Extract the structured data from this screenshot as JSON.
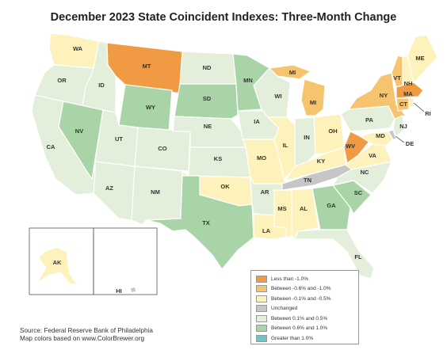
{
  "title": "December 2023 State Coincident Indexes: Three-Month Change",
  "colors": {
    "c1": "#f09a44",
    "c2": "#f6c46e",
    "c3": "#fdf2bc",
    "c4": "#c6c6c6",
    "c5": "#e3eedb",
    "c6": "#a9d4a7",
    "c7": "#79c0c2"
  },
  "legend": {
    "items": [
      {
        "key": "c1",
        "label": "Less than -1.0%"
      },
      {
        "key": "c2",
        "label": "Between -0.6% and -1.0%"
      },
      {
        "key": "c3",
        "label": "Between -0.1% and -0.5%"
      },
      {
        "key": "c4",
        "label": "Unchanged"
      },
      {
        "key": "c5",
        "label": "Between 0.1% and 0.5%"
      },
      {
        "key": "c6",
        "label": "Between 0.6% and 1.0%"
      },
      {
        "key": "c7",
        "label": "Greater than 1.0%"
      }
    ]
  },
  "source": {
    "line1": "Source: Federal Reserve Bank of Philadelphia",
    "line2": "Map colors based on www.ColorBrewer.org"
  },
  "states": {
    "WA": {
      "label": "WA",
      "cat": "c3"
    },
    "OR": {
      "label": "OR",
      "cat": "c5"
    },
    "CA": {
      "label": "CA",
      "cat": "c5"
    },
    "ID": {
      "label": "ID",
      "cat": "c5"
    },
    "NV": {
      "label": "NV",
      "cat": "c6"
    },
    "MT": {
      "label": "MT",
      "cat": "c1"
    },
    "WY": {
      "label": "WY",
      "cat": "c6"
    },
    "UT": {
      "label": "UT",
      "cat": "c5"
    },
    "AZ": {
      "label": "AZ",
      "cat": "c5"
    },
    "CO": {
      "label": "CO",
      "cat": "c5"
    },
    "NM": {
      "label": "NM",
      "cat": "c5"
    },
    "ND": {
      "label": "ND",
      "cat": "c5"
    },
    "SD": {
      "label": "SD",
      "cat": "c6"
    },
    "NE": {
      "label": "NE",
      "cat": "c5"
    },
    "KS": {
      "label": "KS",
      "cat": "c5"
    },
    "OK": {
      "label": "OK",
      "cat": "c3"
    },
    "TX": {
      "label": "TX",
      "cat": "c6"
    },
    "MN": {
      "label": "MN",
      "cat": "c6"
    },
    "IA": {
      "label": "IA",
      "cat": "c5"
    },
    "MO": {
      "label": "MO",
      "cat": "c3"
    },
    "AR": {
      "label": "AR",
      "cat": "c5"
    },
    "LA": {
      "label": "LA",
      "cat": "c3"
    },
    "WI": {
      "label": "WI",
      "cat": "c5"
    },
    "IL": {
      "label": "IL",
      "cat": "c3"
    },
    "MI": {
      "label": "MI",
      "cat": "c2"
    },
    "IN": {
      "label": "IN",
      "cat": "c5"
    },
    "OH": {
      "label": "OH",
      "cat": "c3"
    },
    "KY": {
      "label": "KY",
      "cat": "c3"
    },
    "TN": {
      "label": "TN",
      "cat": "c4"
    },
    "MS": {
      "label": "MS",
      "cat": "c3"
    },
    "AL": {
      "label": "AL",
      "cat": "c3"
    },
    "GA": {
      "label": "GA",
      "cat": "c6"
    },
    "FL": {
      "label": "FL",
      "cat": "c5"
    },
    "SC": {
      "label": "SC",
      "cat": "c6"
    },
    "NC": {
      "label": "NC",
      "cat": "c5"
    },
    "VA": {
      "label": "VA",
      "cat": "c3"
    },
    "WV": {
      "label": "WV",
      "cat": "c1"
    },
    "PA": {
      "label": "PA",
      "cat": "c5"
    },
    "NY": {
      "label": "NY",
      "cat": "c2"
    },
    "VT": {
      "label": "VT",
      "cat": "c2"
    },
    "NH": {
      "label": "NH",
      "cat": "c3"
    },
    "ME": {
      "label": "ME",
      "cat": "c3"
    },
    "MA": {
      "label": "MA",
      "cat": "c1"
    },
    "CT": {
      "label": "CT",
      "cat": "c2"
    },
    "RI": {
      "label": "RI",
      "cat": "c3"
    },
    "NJ": {
      "label": "NJ",
      "cat": "c5"
    },
    "DE": {
      "label": "DE",
      "cat": "c4"
    },
    "MD": {
      "label": "MD",
      "cat": "c3"
    },
    "AK": {
      "label": "AK",
      "cat": "c3"
    },
    "HI": {
      "label": "HI",
      "cat": "c4"
    }
  }
}
